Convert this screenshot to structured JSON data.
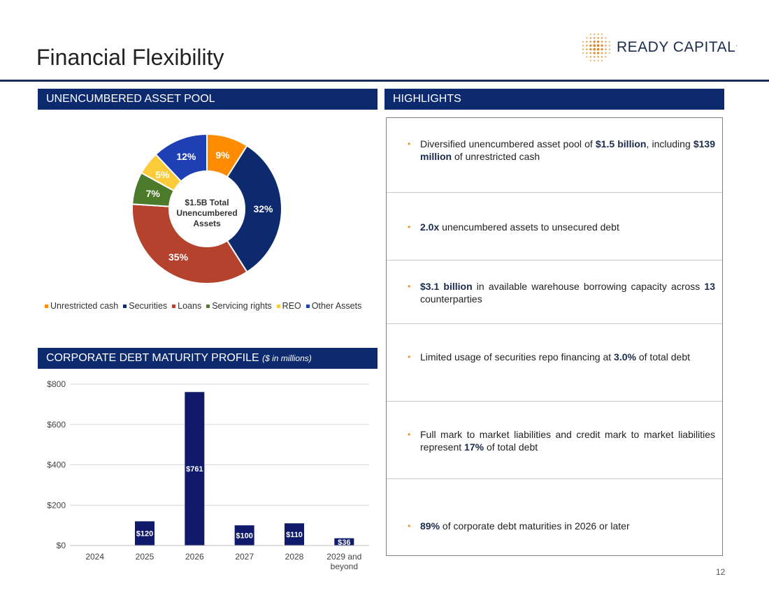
{
  "header": {
    "title": "Financial Flexibility",
    "logo_text": "READY CAPITAL",
    "logo_mark": "."
  },
  "sections": {
    "pool_title": "UNENCUMBERED ASSET POOL",
    "highlights_title": "HIGHLIGHTS",
    "debt_title": "CORPORATE DEBT MATURITY PROFILE",
    "debt_subtitle": "($ in millions)"
  },
  "colors": {
    "navy": "#0d2a6e",
    "orange": "#ff8c00",
    "red": "#b5422c",
    "green": "#4a7a2a",
    "yellow": "#fccb3a",
    "blue": "#1f3fb4",
    "bar": "#0f1a6b",
    "bullet": "#e8912d"
  },
  "chart_data": [
    {
      "type": "pie",
      "title": "$1.5B Total Unencumbered Assets",
      "center_label_lines": [
        "$1.5B Total",
        "Unencumbered",
        "Assets"
      ],
      "slices": [
        {
          "name": "Unrestricted cash",
          "value": 9,
          "label": "9%",
          "color": "#ff8c00"
        },
        {
          "name": "Securities",
          "value": 32,
          "label": "32%",
          "color": "#0d2a6e"
        },
        {
          "name": "Loans",
          "value": 35,
          "label": "35%",
          "color": "#b5422c"
        },
        {
          "name": "Servicing rights",
          "value": 7,
          "label": "7%",
          "color": "#4a7a2a"
        },
        {
          "name": "REO",
          "value": 5,
          "label": "5%",
          "color": "#fccb3a"
        },
        {
          "name": "Other Assets",
          "value": 12,
          "label": "12%",
          "color": "#1f3fb4"
        }
      ],
      "legend": "bottom"
    },
    {
      "type": "bar",
      "title": "CORPORATE DEBT MATURITY PROFILE ($ in millions)",
      "categories": [
        "2024",
        "2025",
        "2026",
        "2027",
        "2028",
        "2029 and beyond"
      ],
      "category_lines": [
        [
          "2024"
        ],
        [
          "2025"
        ],
        [
          "2026"
        ],
        [
          "2027"
        ],
        [
          "2028"
        ],
        [
          "2029 and",
          "beyond"
        ]
      ],
      "values": [
        0,
        120,
        761,
        100,
        110,
        36
      ],
      "data_labels": [
        "",
        "$120",
        "$761",
        "$100",
        "$110",
        "$36"
      ],
      "yticks": [
        0,
        200,
        400,
        600,
        800
      ],
      "ytick_labels": [
        "$0",
        "$200",
        "$400",
        "$600",
        "$800"
      ],
      "ylim": [
        0,
        800
      ],
      "grid": true
    }
  ],
  "highlights": [
    {
      "parts": [
        {
          "t": "Diversified unencumbered asset pool of "
        },
        {
          "t": "$1.5 billion",
          "b": true
        },
        {
          "t": ", including "
        },
        {
          "t": "$139 million",
          "b": true
        },
        {
          "t": " of unrestricted cash"
        }
      ]
    },
    {
      "parts": [
        {
          "t": "2.0x",
          "b": true
        },
        {
          "t": " unencumbered assets to unsecured debt"
        }
      ]
    },
    {
      "parts": [
        {
          "t": "$3.1 billion",
          "b": true
        },
        {
          "t": " in available warehouse borrowing capacity across "
        },
        {
          "t": "13",
          "b": true
        },
        {
          "t": " counterparties"
        }
      ]
    },
    {
      "parts": [
        {
          "t": "Limited usage of securities repo financing at "
        },
        {
          "t": "3.0%",
          "b": true
        },
        {
          "t": " of total debt"
        }
      ]
    },
    {
      "parts": [
        {
          "t": "Full mark to market liabilities and credit mark to market liabilities represent "
        },
        {
          "t": "17%",
          "b": true
        },
        {
          "t": " of total debt"
        }
      ]
    },
    {
      "parts": [
        {
          "t": "89%",
          "b": true
        },
        {
          "t": " of corporate debt maturities in 2026 or later"
        }
      ]
    }
  ],
  "bullet_glyph": "•",
  "page_number": "12"
}
